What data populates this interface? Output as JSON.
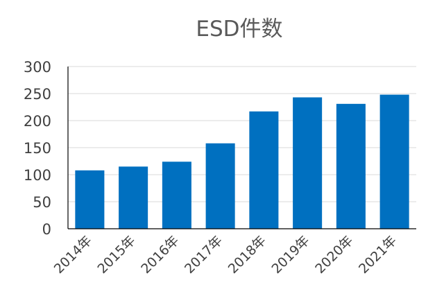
{
  "chart_data": {
    "type": "bar",
    "title": "ESD件数",
    "xlabel": "",
    "ylabel": "",
    "categories": [
      "2014年",
      "2015年",
      "2016年",
      "2017年",
      "2018年",
      "2019年",
      "2020年",
      "2021年"
    ],
    "values": [
      108,
      115,
      124,
      158,
      217,
      243,
      231,
      248
    ],
    "ylim": [
      0,
      300
    ],
    "yticks": [
      "0",
      "50",
      "100",
      "150",
      "200",
      "250",
      "300"
    ],
    "grid": true,
    "legend": "none",
    "colors": {
      "bar": "#0070c0",
      "grid": "#d9d9d9",
      "axis": "#000000",
      "text": "#404040",
      "title": "#595959"
    }
  }
}
